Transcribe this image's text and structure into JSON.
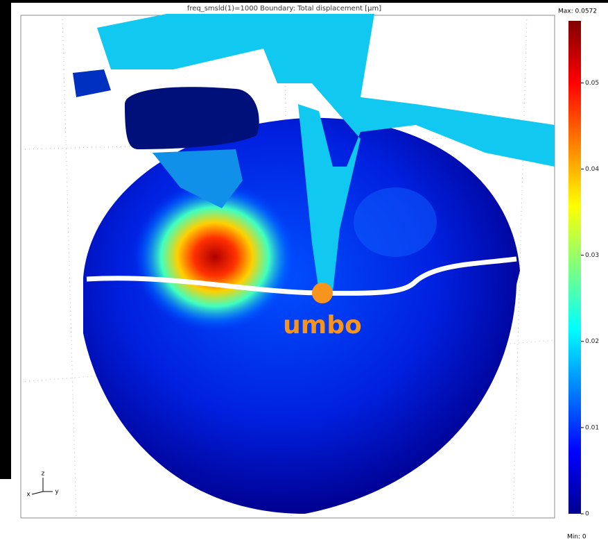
{
  "title": "freq_smsld(1)=1000    Boundary: Total displacement [µm]",
  "colorbar": {
    "max_label": "Max: 0.0572",
    "min_label": "Min: 0",
    "range": [
      0,
      0.0572
    ],
    "ticks": [
      0,
      0.01,
      0.02,
      0.03,
      0.04,
      0.05
    ]
  },
  "annotation": "umbo",
  "axes": {
    "z": "z",
    "x": "x",
    "y": "y"
  }
}
